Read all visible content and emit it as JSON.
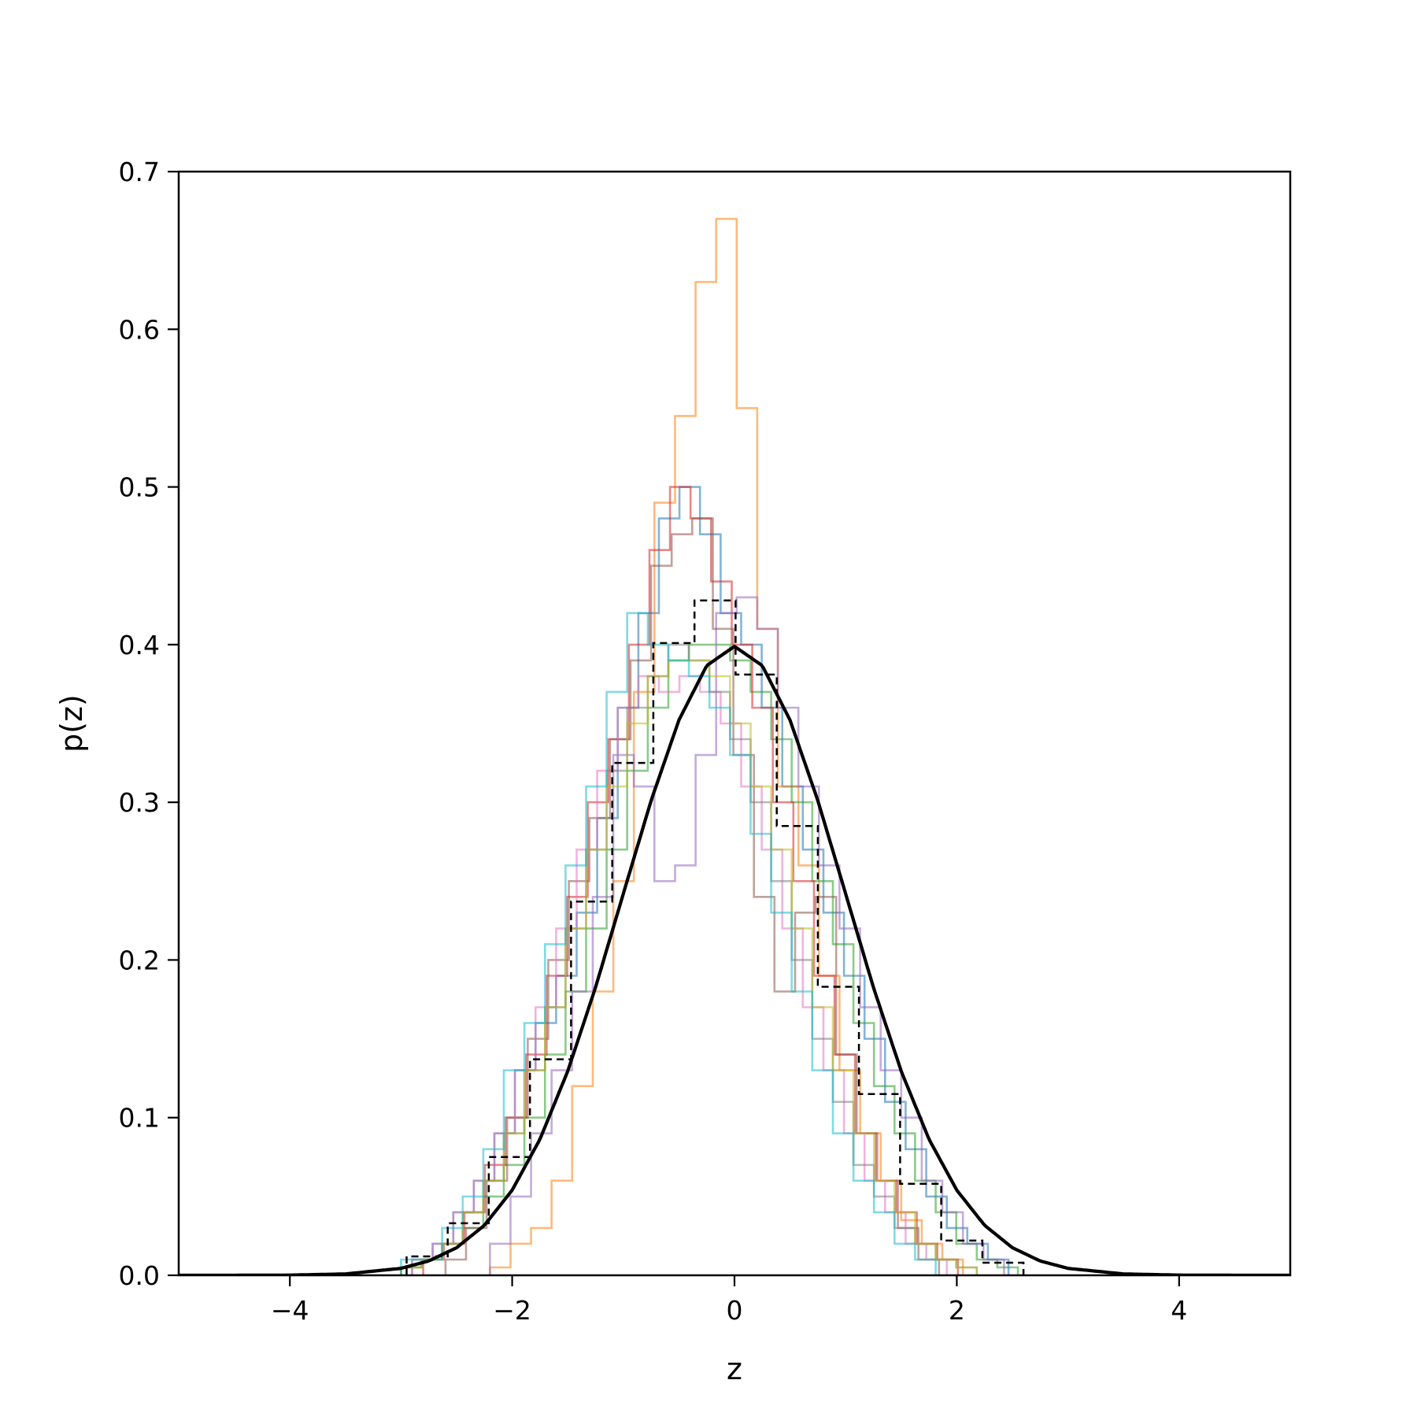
{
  "chart_data": {
    "type": "step-histogram",
    "xlabel": "z",
    "ylabel": "p(z)",
    "xlim": [
      -5,
      5
    ],
    "ylim": [
      0,
      0.7
    ],
    "xticks": [
      -4,
      -2,
      0,
      2,
      4
    ],
    "xtick_labels": [
      "−4",
      "−2",
      "0",
      "2",
      "4"
    ],
    "yticks": [
      0.0,
      0.1,
      0.2,
      0.3,
      0.4,
      0.5,
      0.6,
      0.7
    ],
    "ytick_labels": [
      "0.0",
      "0.1",
      "0.2",
      "0.3",
      "0.4",
      "0.5",
      "0.6",
      "0.7"
    ],
    "grid": false,
    "histograms": [
      {
        "color": "#1f77b4",
        "start": -2.9,
        "width": 0.185,
        "densities": [
          0.01,
          0.02,
          0.04,
          0.06,
          0.09,
          0.13,
          0.16,
          0.19,
          0.23,
          0.29,
          0.36,
          0.42,
          0.48,
          0.5,
          0.47,
          0.42,
          0.4,
          0.36,
          0.31,
          0.27,
          0.23,
          0.19,
          0.15,
          0.11,
          0.08,
          0.05,
          0.03,
          0.02,
          0.01
        ]
      },
      {
        "color": "#ff7f0e",
        "start": -2.2,
        "width": 0.185,
        "densities": [
          0.005,
          0.02,
          0.03,
          0.06,
          0.12,
          0.18,
          0.25,
          0.37,
          0.49,
          0.545,
          0.63,
          0.67,
          0.55,
          0.41,
          0.31,
          0.26,
          0.19,
          0.13,
          0.09,
          0.06,
          0.035,
          0.02,
          0.01
        ]
      },
      {
        "color": "#2ca02c",
        "start": -3.0,
        "width": 0.185,
        "densities": [
          0.005,
          0.01,
          0.02,
          0.03,
          0.05,
          0.07,
          0.1,
          0.14,
          0.18,
          0.22,
          0.27,
          0.32,
          0.36,
          0.39,
          0.4,
          0.4,
          0.39,
          0.37,
          0.34,
          0.3,
          0.25,
          0.21,
          0.16,
          0.12,
          0.09,
          0.06,
          0.04,
          0.02,
          0.01,
          0.005
        ]
      },
      {
        "color": "#d62728",
        "start": -2.8,
        "width": 0.185,
        "densities": [
          0.01,
          0.02,
          0.04,
          0.07,
          0.1,
          0.14,
          0.19,
          0.24,
          0.3,
          0.34,
          0.4,
          0.46,
          0.5,
          0.48,
          0.44,
          0.4,
          0.36,
          0.3,
          0.25,
          0.19,
          0.14,
          0.09,
          0.06,
          0.04,
          0.02,
          0.01
        ]
      },
      {
        "color": "#9467bd",
        "start": -2.2,
        "width": 0.185,
        "densities": [
          0.02,
          0.05,
          0.09,
          0.13,
          0.18,
          0.24,
          0.33,
          0.31,
          0.25,
          0.26,
          0.33,
          0.42,
          0.43,
          0.41,
          0.36,
          0.31,
          0.26,
          0.22,
          0.17,
          0.13,
          0.1,
          0.06,
          0.04,
          0.02,
          0.01
        ]
      },
      {
        "color": "#8c564b",
        "start": -2.6,
        "width": 0.185,
        "densities": [
          0.01,
          0.03,
          0.06,
          0.1,
          0.15,
          0.2,
          0.25,
          0.29,
          0.34,
          0.39,
          0.45,
          0.47,
          0.48,
          0.41,
          0.33,
          0.24,
          0.18,
          0.23,
          0.24,
          0.14,
          0.09,
          0.06,
          0.03,
          0.01
        ]
      },
      {
        "color": "#e377c2",
        "start": -2.9,
        "width": 0.185,
        "densities": [
          0.01,
          0.02,
          0.04,
          0.06,
          0.09,
          0.13,
          0.17,
          0.22,
          0.27,
          0.32,
          0.36,
          0.38,
          0.37,
          0.38,
          0.37,
          0.35,
          0.31,
          0.27,
          0.22,
          0.17,
          0.13,
          0.09,
          0.06,
          0.04,
          0.02,
          0.01
        ]
      },
      {
        "color": "#7f7f7f",
        "start": -3.0,
        "width": 0.185,
        "densities": [
          0.005,
          0.01,
          0.02,
          0.04,
          0.06,
          0.09,
          0.13,
          0.17,
          0.22,
          0.27,
          0.32,
          0.36,
          0.38,
          0.4,
          0.39,
          0.37,
          0.34,
          0.3,
          0.25,
          0.2,
          0.15,
          0.11,
          0.07,
          0.05,
          0.03,
          0.02,
          0.01,
          0.005
        ]
      },
      {
        "color": "#bcbd22",
        "start": -3.0,
        "width": 0.185,
        "densities": [
          0.005,
          0.01,
          0.02,
          0.04,
          0.06,
          0.09,
          0.13,
          0.17,
          0.22,
          0.27,
          0.31,
          0.35,
          0.38,
          0.39,
          0.39,
          0.38,
          0.35,
          0.31,
          0.27,
          0.22,
          0.17,
          0.13,
          0.09,
          0.06,
          0.04,
          0.02,
          0.01,
          0.005
        ]
      },
      {
        "color": "#17becf",
        "start": -3.0,
        "width": 0.185,
        "densities": [
          0.01,
          0.01,
          0.03,
          0.05,
          0.08,
          0.13,
          0.16,
          0.21,
          0.26,
          0.31,
          0.37,
          0.42,
          0.4,
          0.39,
          0.38,
          0.36,
          0.33,
          0.28,
          0.23,
          0.18,
          0.13,
          0.09,
          0.06,
          0.04,
          0.02,
          0.01
        ]
      }
    ],
    "reference_histogram": {
      "color": "#000000",
      "style": "dashed",
      "start": -2.95,
      "width": 0.37,
      "densities": [
        0.012,
        0.033,
        0.075,
        0.137,
        0.237,
        0.325,
        0.401,
        0.428,
        0.381,
        0.285,
        0.183,
        0.115,
        0.058,
        0.022,
        0.008
      ]
    },
    "density_curve": {
      "color": "#000000",
      "x": [
        -5.0,
        -4.5,
        -4.0,
        -3.5,
        -3.0,
        -2.75,
        -2.5,
        -2.25,
        -2.0,
        -1.75,
        -1.5,
        -1.25,
        -1.0,
        -0.75,
        -0.5,
        -0.25,
        0.0,
        0.25,
        0.5,
        0.75,
        1.0,
        1.25,
        1.5,
        1.75,
        2.0,
        2.25,
        2.5,
        2.75,
        3.0,
        3.5,
        4.0,
        4.5,
        5.0
      ],
      "y": [
        0.0,
        1.6e-05,
        0.000134,
        0.00087,
        0.0044,
        0.0091,
        0.0175,
        0.0317,
        0.054,
        0.0863,
        0.1295,
        0.1826,
        0.242,
        0.3011,
        0.3521,
        0.3867,
        0.3989,
        0.3867,
        0.3521,
        0.3011,
        0.242,
        0.1826,
        0.1295,
        0.0863,
        0.054,
        0.0317,
        0.0175,
        0.0091,
        0.0044,
        0.00087,
        0.000134,
        1.6e-05,
        0.0
      ]
    }
  }
}
